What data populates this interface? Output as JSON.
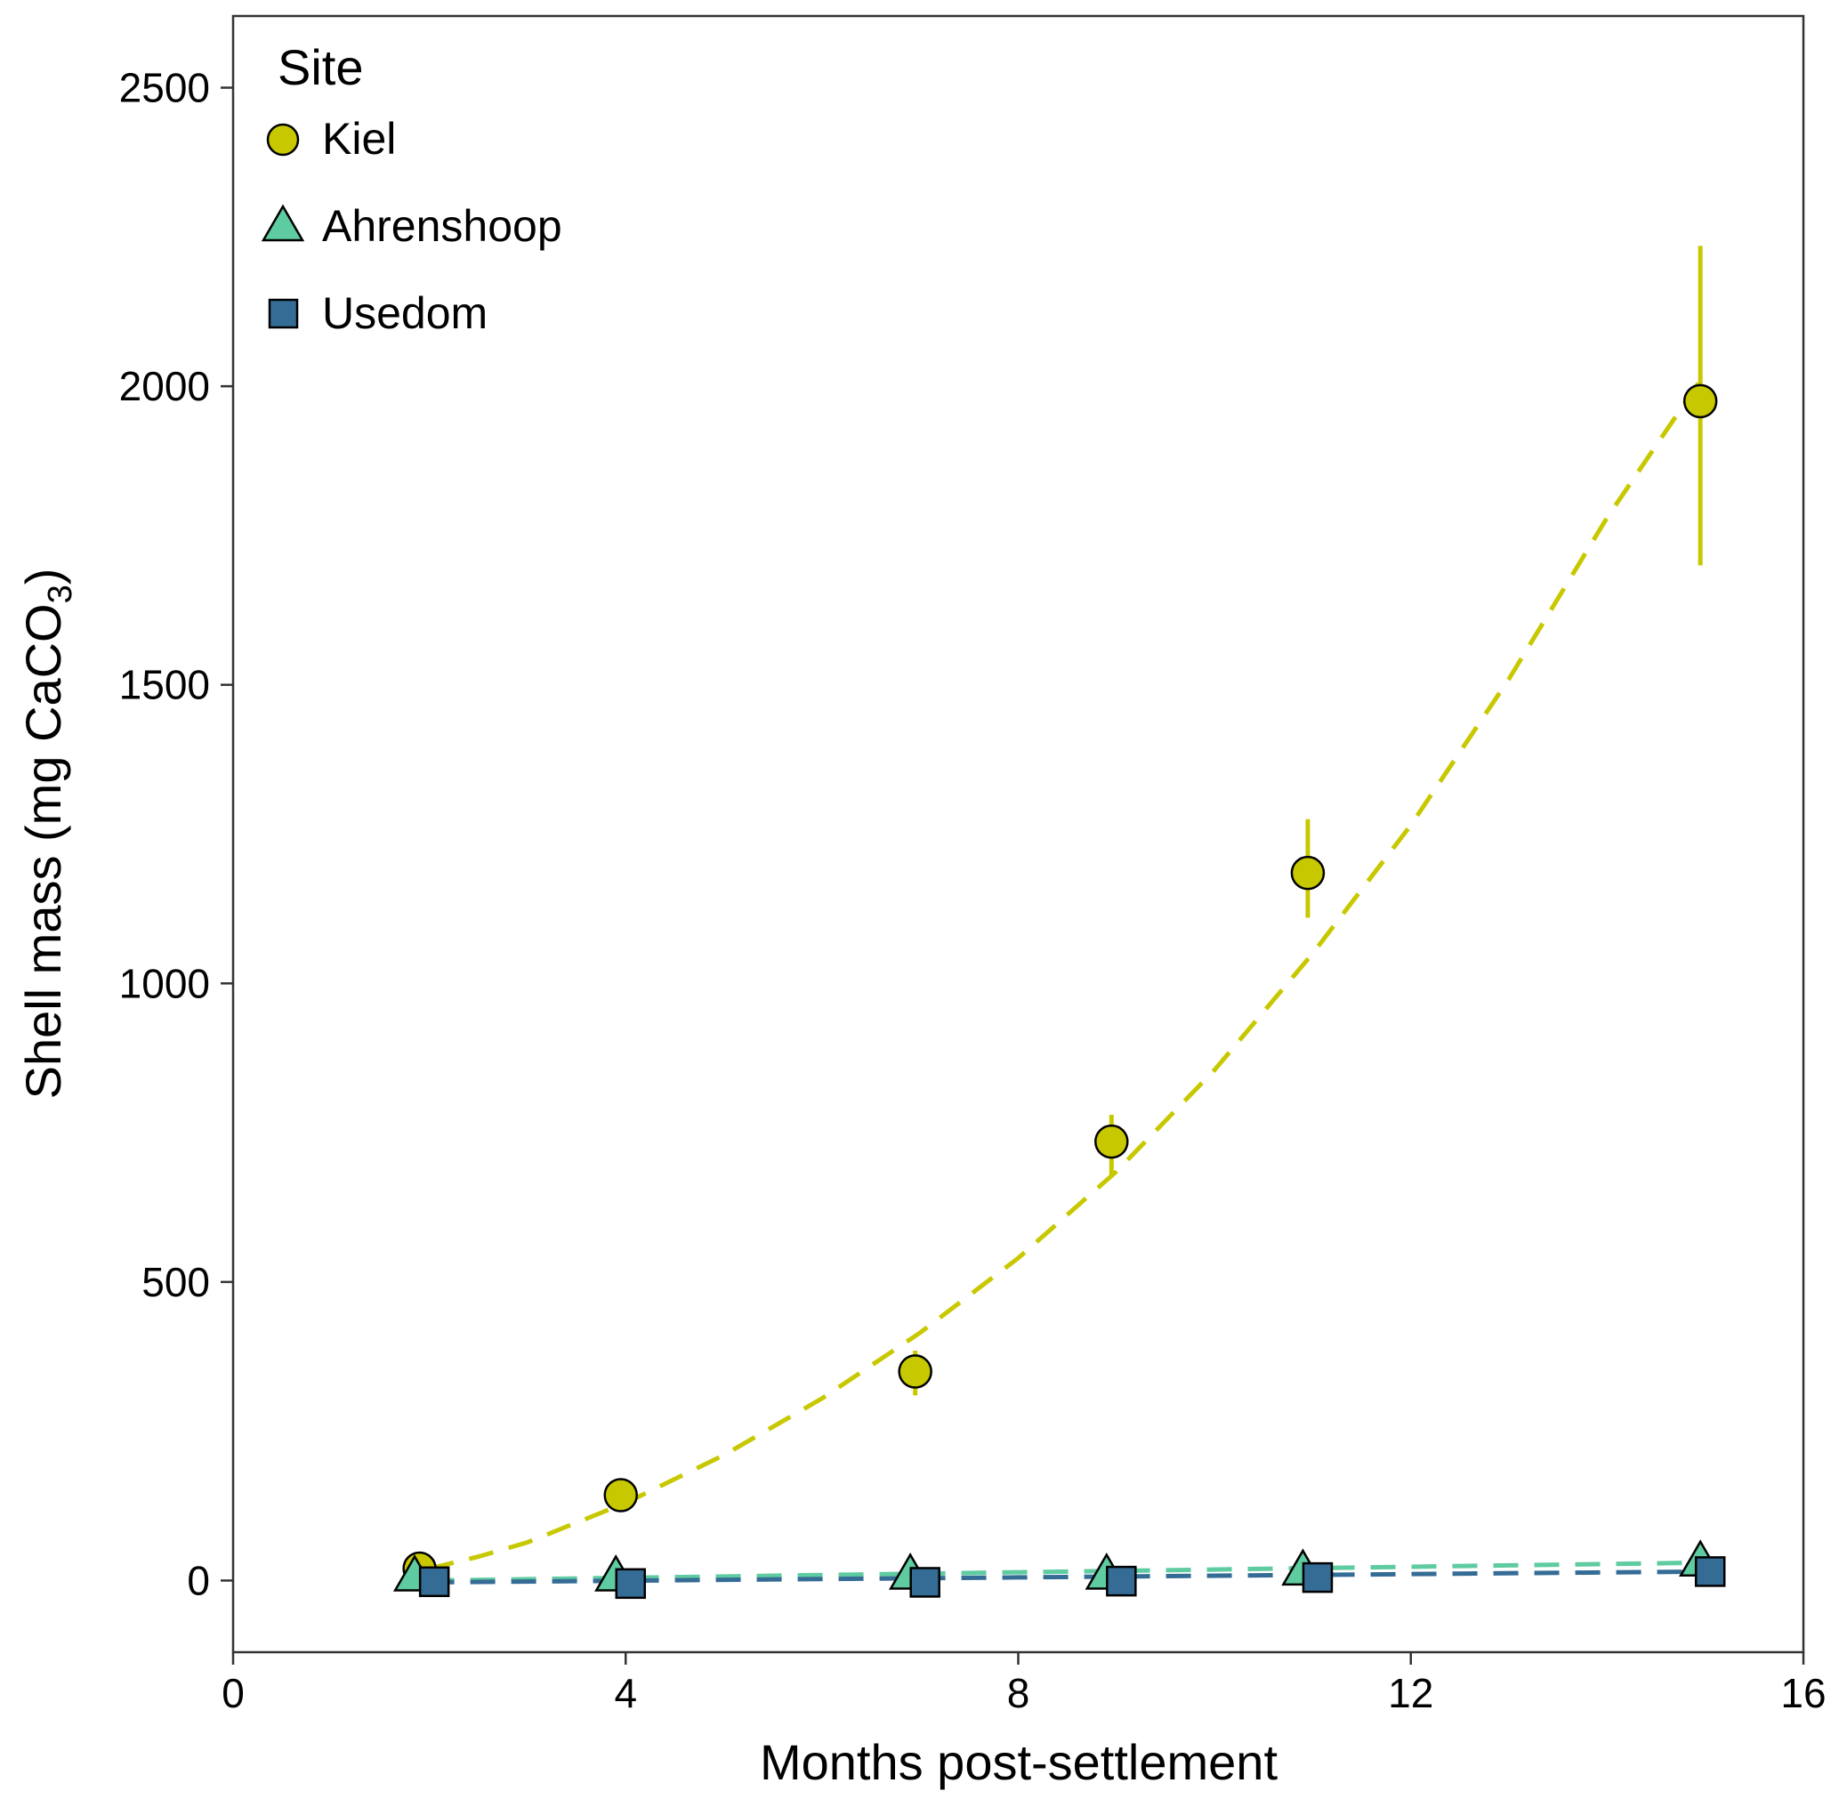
{
  "chart_data": {
    "type": "scatter",
    "xlabel": "Months post-settlement",
    "ylabel_prefix": "Shell mass (mg CaCO",
    "ylabel_subscript": "3",
    "ylabel_suffix": ")",
    "xlim": [
      0,
      16
    ],
    "ylim": [
      -120,
      2620
    ],
    "xticks": [
      0,
      4,
      8,
      12,
      16
    ],
    "yticks": [
      0,
      500,
      1000,
      1500,
      2000,
      2500
    ],
    "grid": false,
    "legend": {
      "title": "Site",
      "placement": "top-left"
    },
    "series": [
      {
        "name": "Kiel",
        "marker": "circle",
        "color": "#c8c800",
        "x": [
          1.9,
          3.95,
          6.95,
          8.95,
          10.95,
          14.95
        ],
        "y": [
          20,
          143,
          350,
          735,
          1185,
          1975
        ],
        "err_low": [
          null,
          null,
          310,
          680,
          1110,
          1700
        ],
        "err_high": [
          null,
          null,
          385,
          780,
          1275,
          2235
        ],
        "fit": {
          "x": [
            2.0,
            2.5,
            3,
            4,
            5,
            6,
            7,
            8,
            9,
            10,
            11,
            12,
            13,
            14,
            14.95
          ],
          "y": [
            20,
            40,
            64,
            130,
            210,
            305,
            415,
            540,
            685,
            855,
            1050,
            1265,
            1510,
            1780,
            2010
          ]
        }
      },
      {
        "name": "Ahrenshoop",
        "marker": "triangle",
        "color": "#5ecba0",
        "x": [
          1.85,
          3.9,
          6.9,
          8.9,
          10.9,
          14.95
        ],
        "y": [
          5,
          5,
          8,
          8,
          15,
          30
        ],
        "fit": {
          "x": [
            2.0,
            15.0
          ],
          "y": [
            0,
            30
          ]
        }
      },
      {
        "name": "Usedom",
        "marker": "square",
        "color": "#356c96",
        "x": [
          2.05,
          4.05,
          7.05,
          9.05,
          11.05,
          15.05
        ],
        "y": [
          -2,
          -5,
          -3,
          -1,
          5,
          15
        ],
        "fit": {
          "x": [
            2.0,
            15.0
          ],
          "y": [
            -3,
            15
          ]
        }
      }
    ]
  }
}
